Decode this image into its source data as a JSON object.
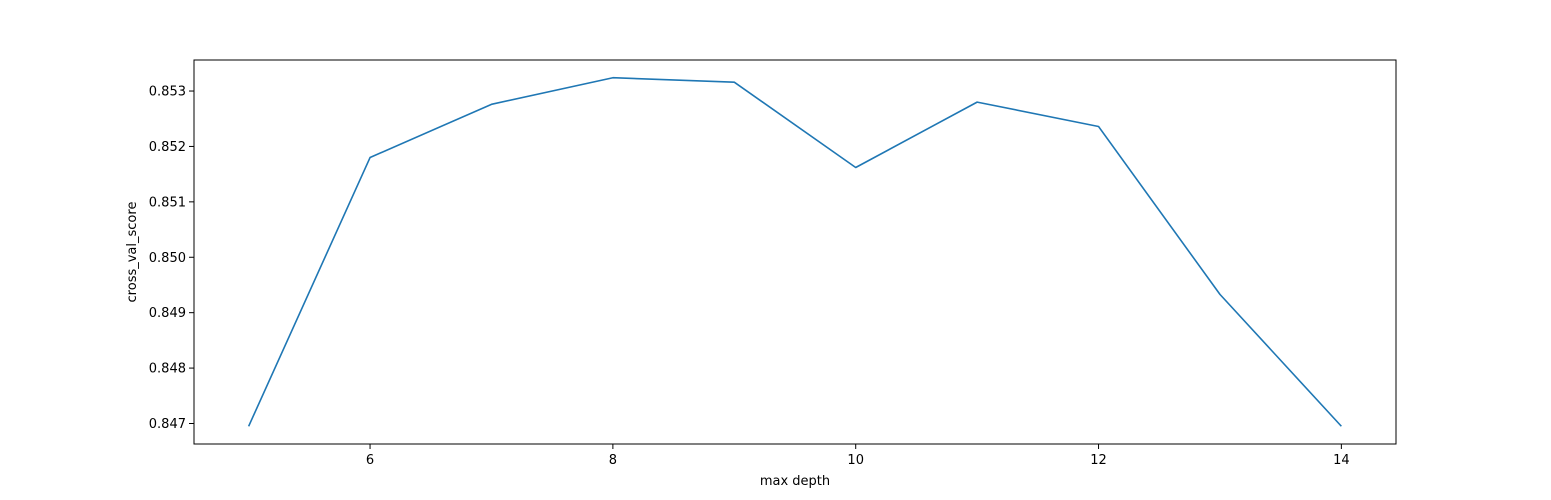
{
  "chart_data": {
    "type": "line",
    "title": "",
    "xlabel": "max depth",
    "ylabel": "cross_val_score",
    "x": [
      5,
      6,
      7,
      8,
      9,
      10,
      11,
      12,
      13,
      14
    ],
    "series": [
      {
        "color": "#1f77b4",
        "values": [
          0.84695,
          0.8518,
          0.85276,
          0.85324,
          0.85316,
          0.85162,
          0.8528,
          0.85236,
          0.84933,
          0.84695
        ]
      }
    ],
    "xlim": [
      4.55,
      14.45
    ],
    "ylim": [
      0.84663,
      0.85356
    ],
    "xticks": [
      6,
      8,
      10,
      12,
      14
    ],
    "xtick_labels": [
      "6",
      "8",
      "10",
      "12",
      "14"
    ],
    "yticks": [
      0.847,
      0.848,
      0.849,
      0.85,
      0.851,
      0.852,
      0.853
    ],
    "ytick_labels": [
      "0.847",
      "0.848",
      "0.849",
      "0.850",
      "0.851",
      "0.852",
      "0.853"
    ],
    "grid": false,
    "legend": "none"
  }
}
